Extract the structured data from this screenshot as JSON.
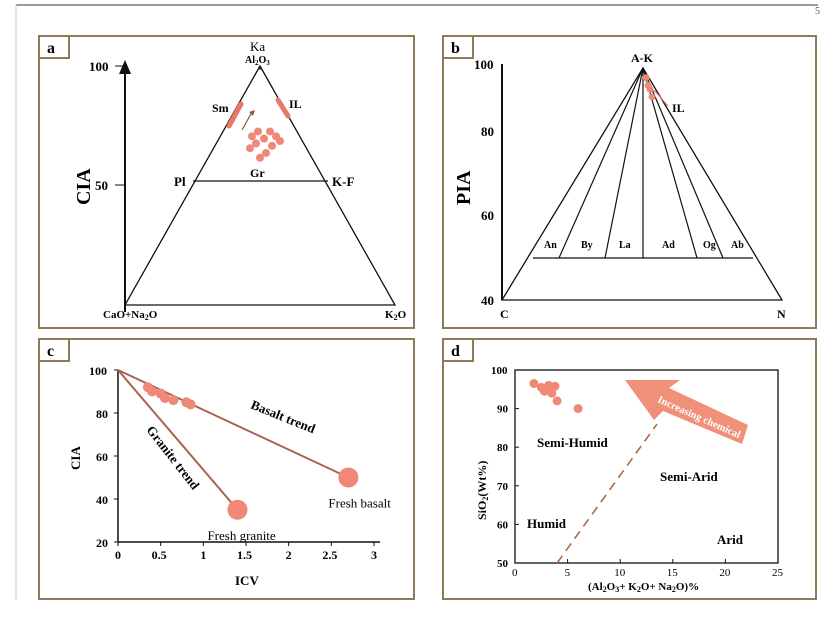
{
  "page": {
    "corner_mark": "5"
  },
  "colors": {
    "frame": "#8b7b56",
    "point": "#f08878",
    "point_dark": "#e7786a",
    "trend": "#a86450",
    "arrow": "#f09078",
    "dash": "#b3654a"
  },
  "chart_data": [
    {
      "panel": "a",
      "type": "scatter",
      "subtype": "ternary",
      "ylabel": "CIA",
      "yticks": [
        {
          "value": 100,
          "label": "100"
        },
        {
          "value": 50,
          "label": "50"
        }
      ],
      "apex_top": "Ka",
      "apex_top_sub": "Al",
      "apex_top_sub2": "2",
      "apex_top_sub3": "O",
      "apex_top_sub4": "3",
      "bottom_left": "CaO+Na",
      "bottom_left_sub": "2",
      "bottom_left_end": "O",
      "bottom_right": "K",
      "bottom_right_sub": "2",
      "bottom_right_end": "O",
      "line_labels": {
        "left": "Pl",
        "middle": "Gr",
        "right": "K-F"
      },
      "field_labels": {
        "sm": "Sm",
        "il": "IL"
      },
      "points_cia": [
        86,
        86,
        84,
        84,
        83,
        82,
        81,
        80,
        79,
        77,
        75
      ]
    },
    {
      "panel": "b",
      "type": "line",
      "subtype": "triangle",
      "ylabel": "PIA",
      "yticks": [
        {
          "value": 100,
          "label": "100"
        },
        {
          "value": 80,
          "label": "80"
        },
        {
          "value": 60,
          "label": "60"
        },
        {
          "value": 40,
          "label": "40"
        }
      ],
      "apex": "A-K",
      "corner_left": "C",
      "corner_right": "N",
      "field_label": "IL",
      "segments": [
        "An",
        "By",
        "La",
        "Ad",
        "Og",
        "Ab"
      ],
      "points_pia": [
        97,
        95,
        94,
        92
      ]
    },
    {
      "panel": "c",
      "type": "scatter",
      "xlabel": "ICV",
      "ylabel": "CIA",
      "xlim": [
        0,
        3
      ],
      "ylim": [
        20,
        100
      ],
      "xticks": [
        "0",
        "0.5",
        "1",
        "1.5",
        "2",
        "2.5",
        "3"
      ],
      "yticks": [
        "20",
        "40",
        "60",
        "80",
        "100"
      ],
      "trends": [
        {
          "name": "Basalt trend",
          "from": [
            0,
            100
          ],
          "to": [
            2.7,
            50
          ]
        },
        {
          "name": "Granite trend",
          "from": [
            0,
            100
          ],
          "to": [
            1.4,
            35
          ]
        }
      ],
      "endmembers": [
        {
          "name": "Fresh basalt",
          "x": 2.7,
          "y": 50
        },
        {
          "name": "Fresh granite",
          "x": 1.4,
          "y": 35
        }
      ],
      "samples": [
        {
          "x": 0.35,
          "y": 92
        },
        {
          "x": 0.4,
          "y": 90
        },
        {
          "x": 0.5,
          "y": 89
        },
        {
          "x": 0.55,
          "y": 87
        },
        {
          "x": 0.65,
          "y": 86
        },
        {
          "x": 0.8,
          "y": 85
        },
        {
          "x": 0.85,
          "y": 84
        }
      ]
    },
    {
      "panel": "d",
      "type": "scatter",
      "xlabel_parts": [
        "(Al",
        "2",
        "O",
        "3",
        "+ K",
        "2",
        "O+ Na",
        "2",
        "O)%"
      ],
      "ylabel_parts": [
        "SiO",
        "2",
        "(Wt%)"
      ],
      "xlim": [
        0,
        25
      ],
      "ylim": [
        50,
        100
      ],
      "xticks": [
        "0",
        "5",
        "10",
        "15",
        "20",
        "25"
      ],
      "yticks": [
        "50",
        "60",
        "70",
        "80",
        "90",
        "100"
      ],
      "regions": [
        "Semi-Humid",
        "Semi-Arid",
        "Humid",
        "Arid"
      ],
      "arrow_label": "Increasing chemical",
      "divider": {
        "from": [
          4,
          50
        ],
        "to": [
          13.5,
          86
        ]
      },
      "samples": [
        {
          "x": 1.8,
          "y": 96.5
        },
        {
          "x": 2.5,
          "y": 95.5
        },
        {
          "x": 3.2,
          "y": 96
        },
        {
          "x": 3.8,
          "y": 95.8
        },
        {
          "x": 2.8,
          "y": 94.5
        },
        {
          "x": 3.5,
          "y": 94
        },
        {
          "x": 4.0,
          "y": 92
        },
        {
          "x": 6.0,
          "y": 90
        }
      ]
    }
  ],
  "panel_labels": [
    "a",
    "b",
    "c",
    "d"
  ]
}
